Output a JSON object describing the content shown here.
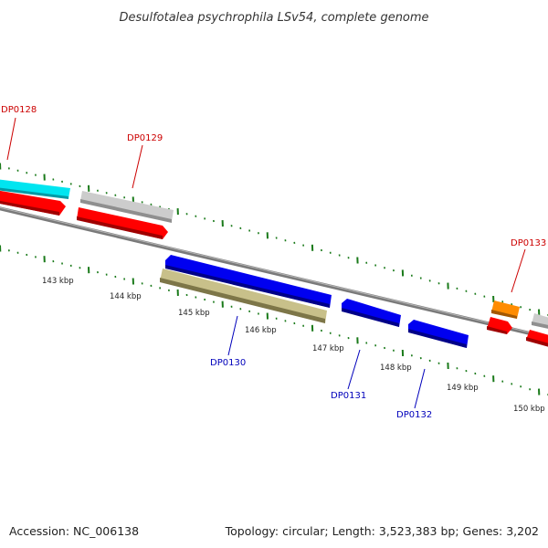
{
  "title": "Desulfotalea psychrophila LSv54, complete genome",
  "footer": {
    "accession": "Accession: NC_006138",
    "summary": "Topology: circular; Length: 3,523,383 bp; Genes: 3,202"
  },
  "colors": {
    "backbone": "#777777",
    "tick": "#1a7a1a",
    "forward_label": "#cc0000",
    "reverse_label": "#0000bb"
  },
  "kbp_labels": [
    "143 kbp",
    "144 kbp",
    "145 kbp",
    "146 kbp",
    "147 kbp",
    "148 kbp",
    "149 kbp",
    "150 kbp"
  ],
  "genes": [
    {
      "label": "DP0128",
      "strand": "forward",
      "color": "#00e5f0"
    },
    {
      "label": "DP0129",
      "strand": "forward",
      "color": "#c8c8c8"
    },
    {
      "label": "DP0130",
      "strand": "reverse",
      "color": "#0000ee"
    },
    {
      "label": "DP0131",
      "strand": "reverse",
      "color": "#0000ee"
    },
    {
      "label": "DP0132",
      "strand": "reverse",
      "color": "#0000ee"
    },
    {
      "label": "DP0133",
      "strand": "forward",
      "color": "#ff8c00"
    }
  ]
}
